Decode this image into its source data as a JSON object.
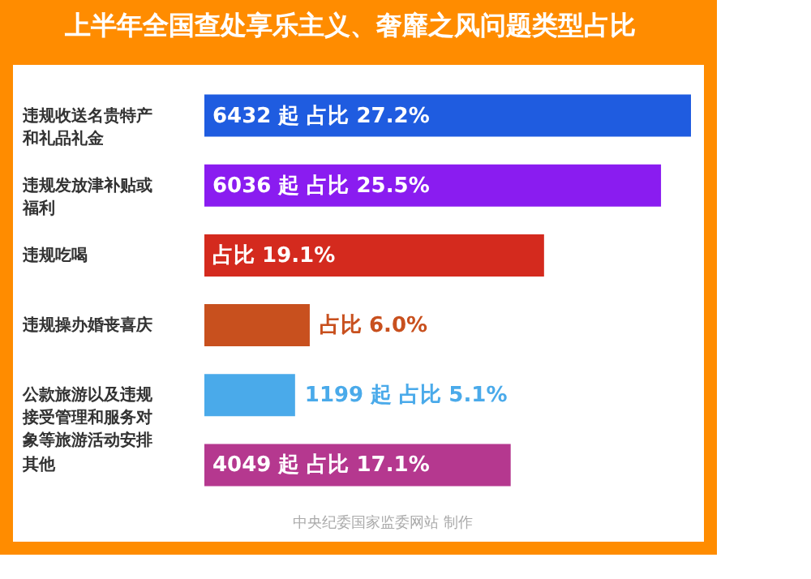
{
  "chart_data": {
    "type": "bar",
    "orientation": "horizontal",
    "title": "上半年全国查处享乐主义、奢靡之风问题类型占比",
    "categories": [
      "违规收送名贵特产和礼品礼金",
      "违规发放津补贴或福利",
      "违规吃喝",
      "违规操办婚丧喜庆",
      "公款旅游以及违规接受管理和服务对象等旅游活动安排",
      "其他"
    ],
    "values": [
      6432,
      6036,
      4490,
      1393,
      1199,
      4049
    ],
    "colors": [
      "#1f5ce0",
      "#8a1cf0",
      "#d42a1e",
      "#c8501e",
      "#4aaaea",
      "#b5388f"
    ],
    "value_labels": [
      "6432 起   占比 27.2%",
      "6036 起   占比 25.5%",
      "占比 19.1%",
      "占比 6.0%",
      "1199 起   占比 5.1%",
      "4049 起   占比 17.1%"
    ],
    "annotations": [
      "中央纪委国家监委网站 制作"
    ]
  }
}
